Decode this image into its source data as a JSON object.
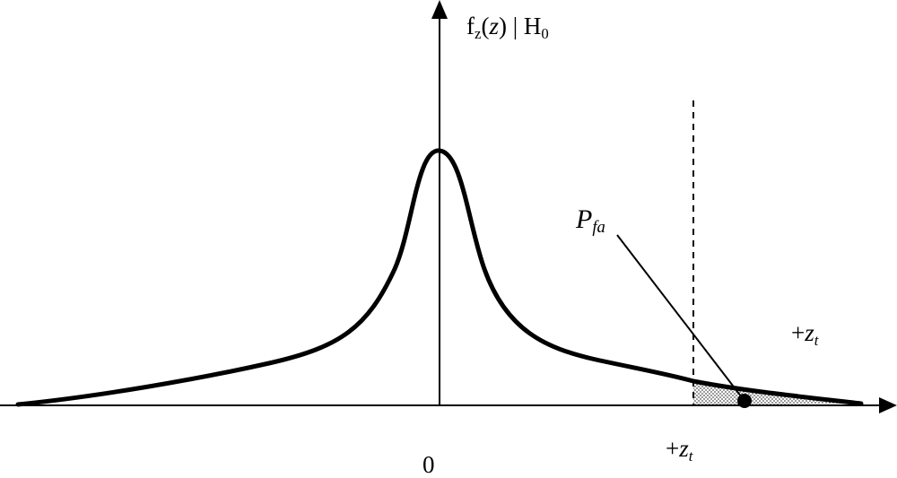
{
  "ylabel": {
    "f": "f",
    "f_sub": "z",
    "open": "(",
    "z": "z",
    "close_given": ") | H",
    "h_sub": "0"
  },
  "pfa": {
    "main": "P",
    "sub": "fa"
  },
  "threshold_right": {
    "sign": "+",
    "z": "z",
    "sub": "t"
  },
  "threshold_axis": {
    "sign": "+",
    "z": "z",
    "sub": "t"
  },
  "origin": "0",
  "colors": {
    "stroke": "#000000",
    "background": "#ffffff",
    "shade": "#999999"
  }
}
